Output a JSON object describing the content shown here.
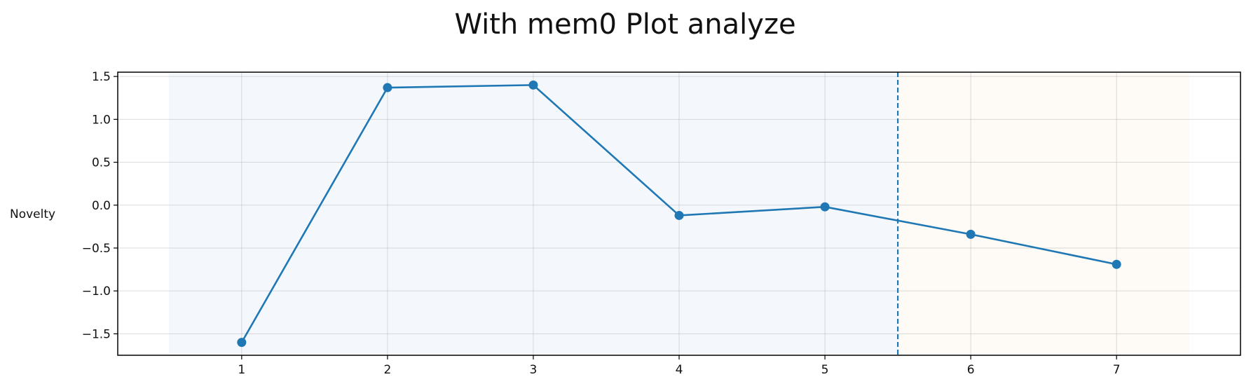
{
  "chart_data": {
    "type": "line",
    "title": "With mem0 Plot analyze",
    "xlabel": "",
    "ylabel": "Novelty",
    "x": [
      1,
      2,
      3,
      4,
      5,
      6,
      7
    ],
    "x_ticks": [
      "1",
      "2",
      "3",
      "4",
      "5",
      "6",
      "7"
    ],
    "y_ticks": [
      1.5,
      1.0,
      0.5,
      0.0,
      -0.5,
      -1.0,
      -1.5
    ],
    "y_tick_labels": [
      "1.5",
      "1.0",
      "0.5",
      "0.0",
      "−0.5",
      "−1.0",
      "−1.5"
    ],
    "xlim": [
      0.15,
      7.85
    ],
    "ylim": [
      -1.75,
      1.55
    ],
    "grid": true,
    "series": [
      {
        "values": [
          -1.6,
          1.37,
          1.4,
          -0.12,
          -0.02,
          -0.34,
          -0.69
        ],
        "color": "#1f77b4",
        "marker": "circle"
      }
    ],
    "vline": {
      "x": 5.5,
      "style": "dashed",
      "color": "#1f77b4"
    },
    "shaded_regions": [
      {
        "x_start": 0.5,
        "x_end": 5.5,
        "color": "#dce7f7"
      },
      {
        "x_start": 5.5,
        "x_end": 7.5,
        "color": "#fdeedd"
      }
    ]
  }
}
